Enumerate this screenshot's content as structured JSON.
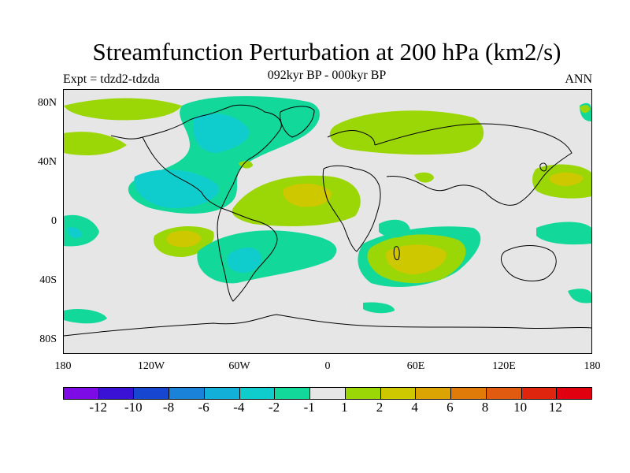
{
  "title": "Streamfunction Perturbation at 200 hPa (km2/s)",
  "subtitle": "092kyr BP - 000kyr BP",
  "left_label": "Expt = tdzd2-tdzda",
  "right_label": "ANN",
  "map": {
    "lat_labels": [
      "80N",
      "40N",
      "0",
      "40S",
      "80S"
    ],
    "lon_labels": [
      "180",
      "120W",
      "60W",
      "0",
      "60E",
      "120E",
      "180"
    ]
  },
  "colorbar": {
    "labels": [
      "-12",
      "-10",
      "-8",
      "-6",
      "-4",
      "-2",
      "-1",
      "1",
      "2",
      "4",
      "6",
      "8",
      "10",
      "12"
    ],
    "colors": [
      "#7d0be6",
      "#3a12d6",
      "#1746d0",
      "#1a82d8",
      "#12b0d8",
      "#10cdcd",
      "#12d89a",
      "#e6e6e6",
      "#9bd706",
      "#cdc800",
      "#dca402",
      "#e07a08",
      "#e05a10",
      "#e0250f",
      "#e00010"
    ]
  },
  "chart_data": {
    "type": "heatmap",
    "title": "Streamfunction Perturbation at 200 hPa (km2/s)",
    "subtitle": "092kyr BP - 000kyr BP",
    "experiment": "Expt = tdzd2-tdzda",
    "season": "ANN",
    "xlim": [
      -180,
      180
    ],
    "ylim": [
      -90,
      90
    ],
    "levels": [
      -12,
      -10,
      -8,
      -6,
      -4,
      -2,
      -1,
      1,
      2,
      4,
      6,
      8,
      10,
      12
    ],
    "unit": "km2/s"
  }
}
